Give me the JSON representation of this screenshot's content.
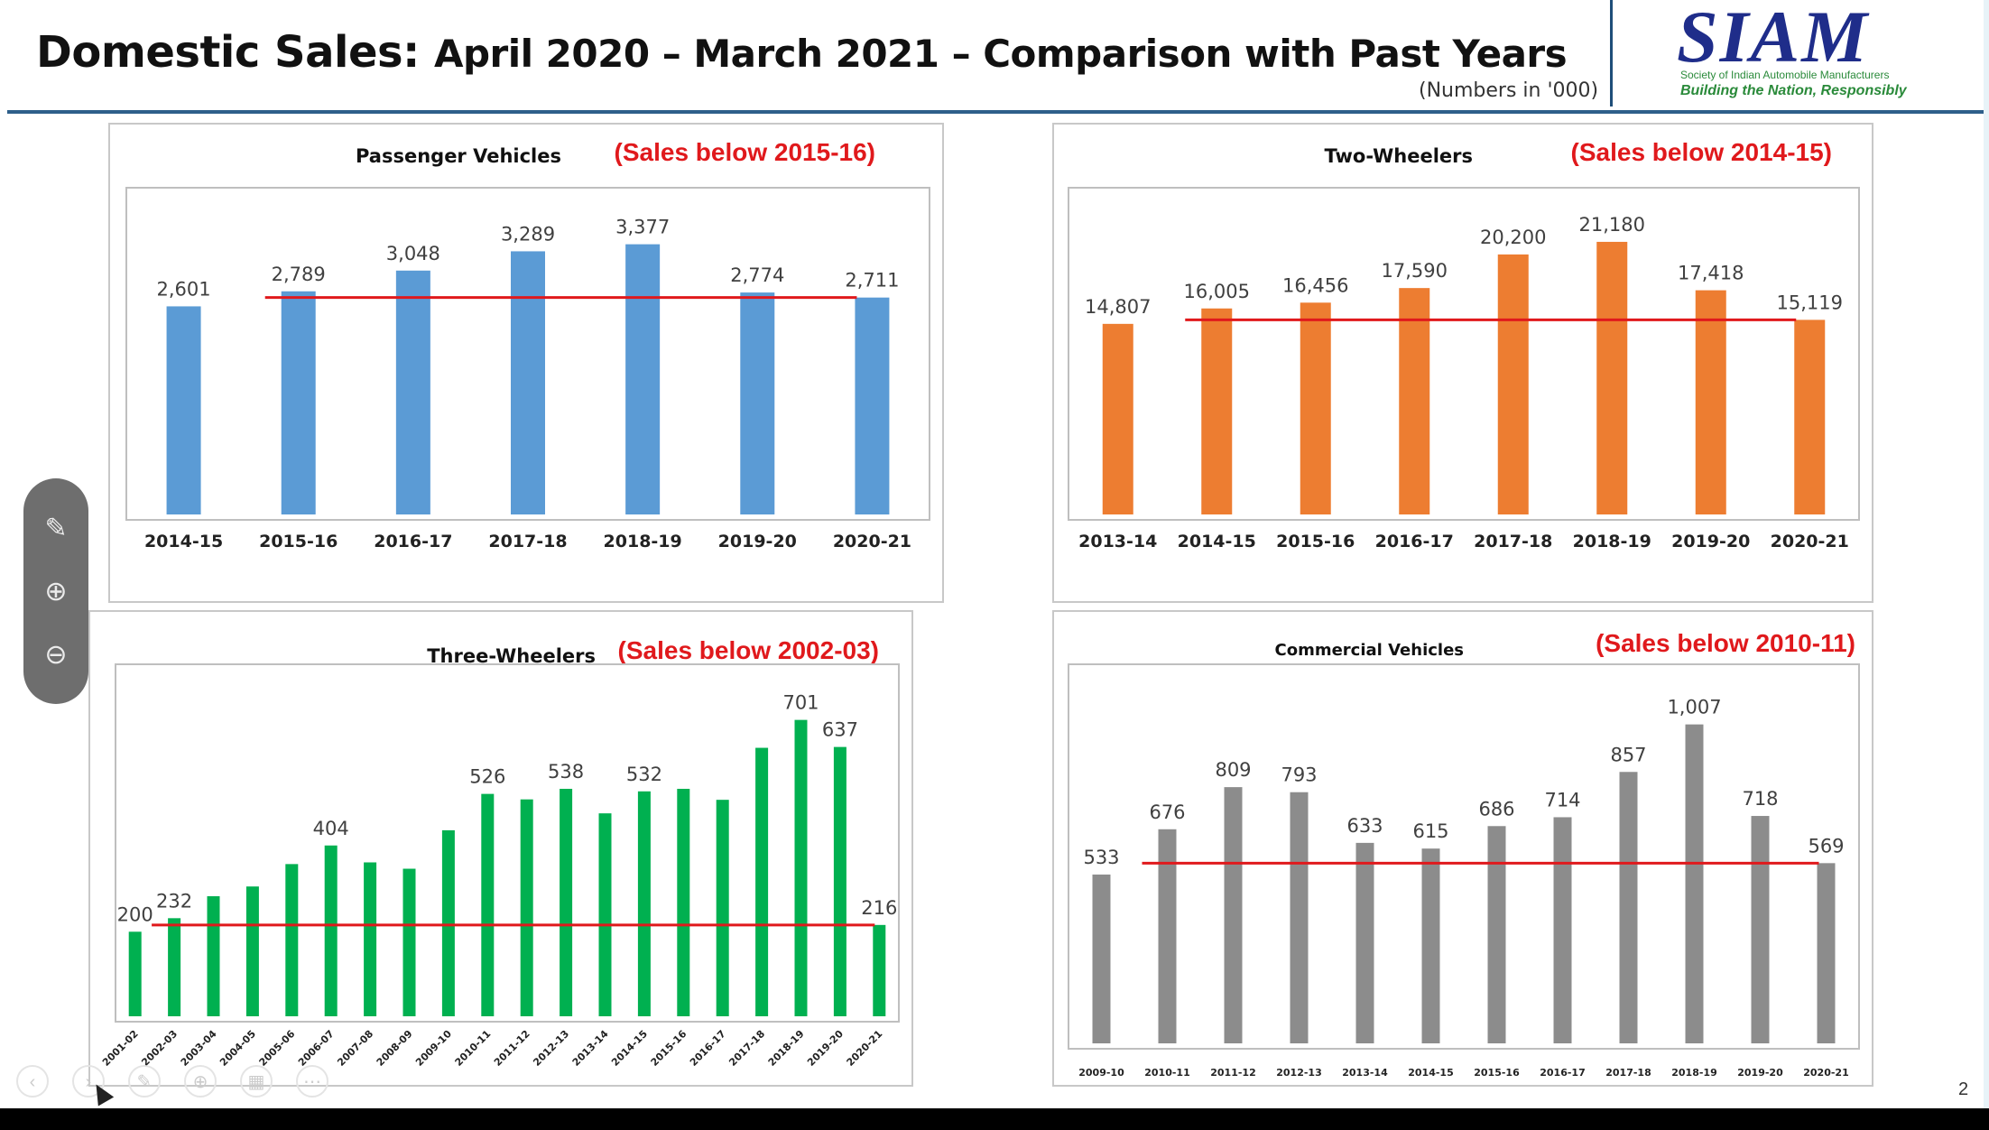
{
  "header": {
    "title_main": "Domestic Sales:",
    "title_rest": "April 2020 – March 2021 – Comparison with Past Years",
    "unit_note": "(Numbers in '000)",
    "logo_text": "SIAM",
    "logo_sub1": "Society of Indian Automobile Manufacturers",
    "logo_sub2": "Building the Nation, Responsibly"
  },
  "page_number": "2",
  "toolbar": {
    "pen_icon": "pen-icon",
    "zoom_in_icon": "zoom-in-icon",
    "zoom_out_icon": "zoom-out-icon"
  },
  "colors": {
    "pv": "#5b9bd5",
    "tw": "#ed7d31",
    "three_w": "#00b050",
    "cv": "#8c8c8c",
    "threshold": "#e0191c",
    "annotation": "#e0191c"
  },
  "chart_data": [
    {
      "id": "pv",
      "type": "bar",
      "title": "Passenger Vehicles",
      "annotation": "(Sales below 2015-16)",
      "categories": [
        "2014-15",
        "2015-16",
        "2016-17",
        "2017-18",
        "2018-19",
        "2019-20",
        "2020-21"
      ],
      "values": [
        2601,
        2789,
        3048,
        3289,
        3377,
        2774,
        2711
      ],
      "labels": [
        "2,601",
        "2,789",
        "3,048",
        "3,289",
        "3,377",
        "2,774",
        "2,711"
      ],
      "threshold": 2711,
      "threshold_from": 1,
      "ylim": [
        0,
        3700
      ]
    },
    {
      "id": "tw",
      "type": "bar",
      "title": "Two-Wheelers",
      "annotation": "(Sales below 2014-15)",
      "categories": [
        "2013-14",
        "2014-15",
        "2015-16",
        "2016-17",
        "2017-18",
        "2018-19",
        "2019-20",
        "2020-21"
      ],
      "values": [
        14807,
        16005,
        16456,
        17590,
        20200,
        21180,
        17418,
        15119
      ],
      "labels": [
        "14,807",
        "16,005",
        "16,456",
        "17,590",
        "20,200",
        "21,180",
        "17,418",
        "15,119"
      ],
      "threshold": 15119,
      "threshold_from": 1,
      "ylim": [
        0,
        23000
      ]
    },
    {
      "id": "three_w",
      "type": "bar",
      "title": "Three-Wheelers",
      "annotation": "(Sales below 2002-03)",
      "categories": [
        "2001-02",
        "2002-03",
        "2003-04",
        "2004-05",
        "2005-06",
        "2006-07",
        "2007-08",
        "2008-09",
        "2009-10",
        "2010-11",
        "2011-12",
        "2012-13",
        "2013-14",
        "2014-15",
        "2015-16",
        "2016-17",
        "2017-18",
        "2018-19",
        "2019-20",
        "2020-21"
      ],
      "values": [
        200,
        232,
        284,
        307,
        360,
        404,
        364,
        349,
        440,
        526,
        513,
        538,
        480,
        532,
        538,
        512,
        635,
        701,
        637,
        216
      ],
      "labels": [
        "200",
        "232",
        "",
        "",
        "",
        "404",
        "",
        "",
        "",
        "526",
        "",
        "538",
        "",
        "532",
        "",
        "",
        "",
        "701",
        "637",
        "216"
      ],
      "threshold": 216,
      "threshold_from": 1,
      "ylim": [
        0,
        760
      ]
    },
    {
      "id": "cv",
      "type": "bar",
      "title": "Commercial Vehicles",
      "annotation": "(Sales below 2010-11)",
      "categories": [
        "2009-10",
        "2010-11",
        "2011-12",
        "2012-13",
        "2013-14",
        "2014-15",
        "2015-16",
        "2016-17",
        "2017-18",
        "2018-19",
        "2019-20",
        "2020-21"
      ],
      "values": [
        533,
        676,
        809,
        793,
        633,
        615,
        686,
        714,
        857,
        1007,
        718,
        569
      ],
      "labels": [
        "533",
        "676",
        "809",
        "793",
        "633",
        "615",
        "686",
        "714",
        "857",
        "1,007",
        "718",
        "569"
      ],
      "threshold": 569,
      "threshold_from": 1,
      "ylim": [
        0,
        1100
      ]
    }
  ]
}
